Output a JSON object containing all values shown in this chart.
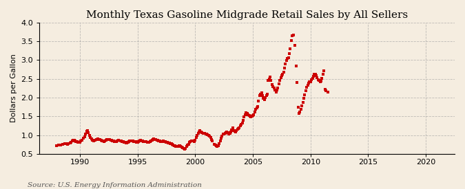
{
  "title": "Monthly Texas Gasoline Midgrade Retail Sales by All Sellers",
  "ylabel": "Dollars per Gallon",
  "source": "Source: U.S. Energy Information Administration",
  "background_color": "#f5ede0",
  "plot_bg_color": "#f5ede0",
  "line_color": "#cc0000",
  "grid_color": "#999999",
  "title_fontsize": 11,
  "label_fontsize": 8,
  "tick_fontsize": 8,
  "source_fontsize": 7.5,
  "xlim": [
    1986.5,
    2022.5
  ],
  "ylim": [
    0.5,
    4.0
  ],
  "yticks": [
    0.5,
    1.0,
    1.5,
    2.0,
    2.5,
    3.0,
    3.5,
    4.0
  ],
  "xticks": [
    1990,
    1995,
    2000,
    2005,
    2010,
    2015,
    2020
  ],
  "data": [
    [
      1988.0,
      0.72
    ],
    [
      1988.17,
      0.73
    ],
    [
      1988.33,
      0.74
    ],
    [
      1988.5,
      0.76
    ],
    [
      1988.67,
      0.77
    ],
    [
      1988.83,
      0.77
    ],
    [
      1988.92,
      0.76
    ],
    [
      1989.0,
      0.77
    ],
    [
      1989.17,
      0.79
    ],
    [
      1989.25,
      0.81
    ],
    [
      1989.33,
      0.84
    ],
    [
      1989.42,
      0.87
    ],
    [
      1989.5,
      0.86
    ],
    [
      1989.58,
      0.84
    ],
    [
      1989.67,
      0.83
    ],
    [
      1989.75,
      0.82
    ],
    [
      1989.83,
      0.81
    ],
    [
      1989.92,
      0.8
    ],
    [
      1990.0,
      0.81
    ],
    [
      1990.08,
      0.84
    ],
    [
      1990.17,
      0.87
    ],
    [
      1990.33,
      0.91
    ],
    [
      1990.42,
      0.95
    ],
    [
      1990.5,
      1.03
    ],
    [
      1990.58,
      1.1
    ],
    [
      1990.67,
      1.12
    ],
    [
      1990.75,
      1.07
    ],
    [
      1990.83,
      1.0
    ],
    [
      1990.92,
      0.94
    ],
    [
      1991.0,
      0.9
    ],
    [
      1991.08,
      0.87
    ],
    [
      1991.17,
      0.85
    ],
    [
      1991.33,
      0.87
    ],
    [
      1991.42,
      0.88
    ],
    [
      1991.5,
      0.89
    ],
    [
      1991.58,
      0.9
    ],
    [
      1991.67,
      0.89
    ],
    [
      1991.75,
      0.88
    ],
    [
      1991.83,
      0.87
    ],
    [
      1991.92,
      0.85
    ],
    [
      1992.0,
      0.84
    ],
    [
      1992.08,
      0.83
    ],
    [
      1992.17,
      0.84
    ],
    [
      1992.25,
      0.86
    ],
    [
      1992.33,
      0.88
    ],
    [
      1992.5,
      0.89
    ],
    [
      1992.58,
      0.88
    ],
    [
      1992.67,
      0.87
    ],
    [
      1992.75,
      0.86
    ],
    [
      1992.83,
      0.85
    ],
    [
      1992.92,
      0.84
    ],
    [
      1993.0,
      0.83
    ],
    [
      1993.08,
      0.82
    ],
    [
      1993.17,
      0.83
    ],
    [
      1993.25,
      0.85
    ],
    [
      1993.33,
      0.86
    ],
    [
      1993.5,
      0.85
    ],
    [
      1993.58,
      0.84
    ],
    [
      1993.67,
      0.83
    ],
    [
      1993.75,
      0.82
    ],
    [
      1993.83,
      0.81
    ],
    [
      1993.92,
      0.8
    ],
    [
      1994.0,
      0.79
    ],
    [
      1994.08,
      0.79
    ],
    [
      1994.17,
      0.8
    ],
    [
      1994.25,
      0.82
    ],
    [
      1994.33,
      0.84
    ],
    [
      1994.5,
      0.85
    ],
    [
      1994.58,
      0.84
    ],
    [
      1994.67,
      0.83
    ],
    [
      1994.75,
      0.82
    ],
    [
      1994.83,
      0.82
    ],
    [
      1994.92,
      0.81
    ],
    [
      1995.0,
      0.81
    ],
    [
      1995.08,
      0.82
    ],
    [
      1995.17,
      0.84
    ],
    [
      1995.25,
      0.86
    ],
    [
      1995.33,
      0.85
    ],
    [
      1995.42,
      0.84
    ],
    [
      1995.5,
      0.83
    ],
    [
      1995.67,
      0.82
    ],
    [
      1995.75,
      0.82
    ],
    [
      1995.83,
      0.81
    ],
    [
      1995.92,
      0.8
    ],
    [
      1996.0,
      0.81
    ],
    [
      1996.08,
      0.83
    ],
    [
      1996.17,
      0.85
    ],
    [
      1996.25,
      0.87
    ],
    [
      1996.33,
      0.89
    ],
    [
      1996.42,
      0.9
    ],
    [
      1996.5,
      0.89
    ],
    [
      1996.58,
      0.88
    ],
    [
      1996.67,
      0.87
    ],
    [
      1996.75,
      0.86
    ],
    [
      1996.83,
      0.85
    ],
    [
      1996.92,
      0.84
    ],
    [
      1997.0,
      0.83
    ],
    [
      1997.08,
      0.82
    ],
    [
      1997.17,
      0.83
    ],
    [
      1997.25,
      0.84
    ],
    [
      1997.33,
      0.83
    ],
    [
      1997.42,
      0.82
    ],
    [
      1997.5,
      0.81
    ],
    [
      1997.58,
      0.8
    ],
    [
      1997.67,
      0.79
    ],
    [
      1997.75,
      0.79
    ],
    [
      1997.83,
      0.78
    ],
    [
      1997.92,
      0.77
    ],
    [
      1998.0,
      0.75
    ],
    [
      1998.08,
      0.73
    ],
    [
      1998.17,
      0.72
    ],
    [
      1998.25,
      0.71
    ],
    [
      1998.33,
      0.7
    ],
    [
      1998.42,
      0.69
    ],
    [
      1998.5,
      0.7
    ],
    [
      1998.58,
      0.71
    ],
    [
      1998.67,
      0.71
    ],
    [
      1998.75,
      0.7
    ],
    [
      1998.83,
      0.68
    ],
    [
      1998.92,
      0.66
    ],
    [
      1999.0,
      0.64
    ],
    [
      1999.08,
      0.63
    ],
    [
      1999.17,
      0.65
    ],
    [
      1999.25,
      0.69
    ],
    [
      1999.33,
      0.73
    ],
    [
      1999.42,
      0.76
    ],
    [
      1999.5,
      0.8
    ],
    [
      1999.58,
      0.82
    ],
    [
      1999.67,
      0.84
    ],
    [
      1999.75,
      0.85
    ],
    [
      1999.83,
      0.84
    ],
    [
      1999.92,
      0.83
    ],
    [
      2000.0,
      0.87
    ],
    [
      2000.08,
      0.93
    ],
    [
      2000.17,
      0.99
    ],
    [
      2000.25,
      1.04
    ],
    [
      2000.33,
      1.09
    ],
    [
      2000.42,
      1.12
    ],
    [
      2000.5,
      1.09
    ],
    [
      2000.58,
      1.06
    ],
    [
      2000.67,
      1.05
    ],
    [
      2000.75,
      1.04
    ],
    [
      2000.83,
      1.04
    ],
    [
      2000.92,
      1.03
    ],
    [
      2001.0,
      1.02
    ],
    [
      2001.08,
      1.01
    ],
    [
      2001.17,
      0.99
    ],
    [
      2001.25,
      0.97
    ],
    [
      2001.33,
      0.93
    ],
    [
      2001.42,
      0.89
    ],
    [
      2001.5,
      0.84
    ],
    [
      2001.67,
      0.75
    ],
    [
      2001.75,
      0.73
    ],
    [
      2001.83,
      0.72
    ],
    [
      2001.92,
      0.7
    ],
    [
      2002.0,
      0.72
    ],
    [
      2002.08,
      0.77
    ],
    [
      2002.17,
      0.84
    ],
    [
      2002.25,
      0.91
    ],
    [
      2002.33,
      0.97
    ],
    [
      2002.42,
      1.02
    ],
    [
      2002.5,
      1.03
    ],
    [
      2002.58,
      1.05
    ],
    [
      2002.67,
      1.07
    ],
    [
      2002.75,
      1.08
    ],
    [
      2002.83,
      1.06
    ],
    [
      2002.92,
      1.03
    ],
    [
      2003.0,
      1.05
    ],
    [
      2003.08,
      1.08
    ],
    [
      2003.17,
      1.14
    ],
    [
      2003.25,
      1.19
    ],
    [
      2003.33,
      1.12
    ],
    [
      2003.42,
      1.1
    ],
    [
      2003.5,
      1.08
    ],
    [
      2003.58,
      1.12
    ],
    [
      2003.67,
      1.16
    ],
    [
      2003.75,
      1.18
    ],
    [
      2003.83,
      1.2
    ],
    [
      2003.92,
      1.24
    ],
    [
      2004.0,
      1.28
    ],
    [
      2004.08,
      1.32
    ],
    [
      2004.17,
      1.4
    ],
    [
      2004.25,
      1.48
    ],
    [
      2004.33,
      1.55
    ],
    [
      2004.42,
      1.6
    ],
    [
      2004.5,
      1.57
    ],
    [
      2004.58,
      1.55
    ],
    [
      2004.67,
      1.52
    ],
    [
      2004.75,
      1.5
    ],
    [
      2004.83,
      1.49
    ],
    [
      2004.92,
      1.5
    ],
    [
      2005.0,
      1.52
    ],
    [
      2005.08,
      1.55
    ],
    [
      2005.17,
      1.62
    ],
    [
      2005.25,
      1.68
    ],
    [
      2005.33,
      1.72
    ],
    [
      2005.42,
      1.77
    ],
    [
      2005.5,
      1.9
    ],
    [
      2005.58,
      2.05
    ],
    [
      2005.67,
      2.1
    ],
    [
      2005.75,
      2.12
    ],
    [
      2005.83,
      2.05
    ],
    [
      2005.92,
      1.98
    ],
    [
      2006.0,
      1.95
    ],
    [
      2006.08,
      2.0
    ],
    [
      2006.17,
      2.05
    ],
    [
      2006.25,
      2.1
    ],
    [
      2006.33,
      2.45
    ],
    [
      2006.42,
      2.5
    ],
    [
      2006.5,
      2.55
    ],
    [
      2006.58,
      2.45
    ],
    [
      2006.67,
      2.35
    ],
    [
      2006.75,
      2.3
    ],
    [
      2006.83,
      2.25
    ],
    [
      2006.92,
      2.2
    ],
    [
      2007.0,
      2.15
    ],
    [
      2007.08,
      2.2
    ],
    [
      2007.17,
      2.26
    ],
    [
      2007.25,
      2.36
    ],
    [
      2007.33,
      2.46
    ],
    [
      2007.42,
      2.53
    ],
    [
      2007.5,
      2.58
    ],
    [
      2007.58,
      2.63
    ],
    [
      2007.67,
      2.68
    ],
    [
      2007.75,
      2.78
    ],
    [
      2007.83,
      2.9
    ],
    [
      2007.92,
      2.99
    ],
    [
      2008.0,
      3.04
    ],
    [
      2008.08,
      3.06
    ],
    [
      2008.17,
      3.18
    ],
    [
      2008.25,
      3.3
    ],
    [
      2008.33,
      3.52
    ],
    [
      2008.42,
      3.65
    ],
    [
      2008.5,
      3.67
    ],
    [
      2008.67,
      3.4
    ],
    [
      2008.75,
      2.85
    ],
    [
      2008.83,
      2.4
    ],
    [
      2008.92,
      1.75
    ],
    [
      2009.0,
      1.58
    ],
    [
      2009.08,
      1.62
    ],
    [
      2009.17,
      1.68
    ],
    [
      2009.25,
      1.78
    ],
    [
      2009.33,
      1.88
    ],
    [
      2009.42,
      1.98
    ],
    [
      2009.5,
      2.08
    ],
    [
      2009.58,
      2.18
    ],
    [
      2009.67,
      2.28
    ],
    [
      2009.75,
      2.33
    ],
    [
      2009.83,
      2.38
    ],
    [
      2009.92,
      2.42
    ],
    [
      2010.0,
      2.42
    ],
    [
      2010.08,
      2.47
    ],
    [
      2010.17,
      2.52
    ],
    [
      2010.25,
      2.57
    ],
    [
      2010.33,
      2.62
    ],
    [
      2010.42,
      2.63
    ],
    [
      2010.5,
      2.58
    ],
    [
      2010.58,
      2.53
    ],
    [
      2010.67,
      2.48
    ],
    [
      2010.75,
      2.45
    ],
    [
      2010.83,
      2.43
    ],
    [
      2010.92,
      2.44
    ],
    [
      2011.0,
      2.52
    ],
    [
      2011.08,
      2.62
    ],
    [
      2011.17,
      2.72
    ],
    [
      2011.25,
      2.22
    ],
    [
      2011.33,
      2.18
    ],
    [
      2011.5,
      2.15
    ]
  ]
}
